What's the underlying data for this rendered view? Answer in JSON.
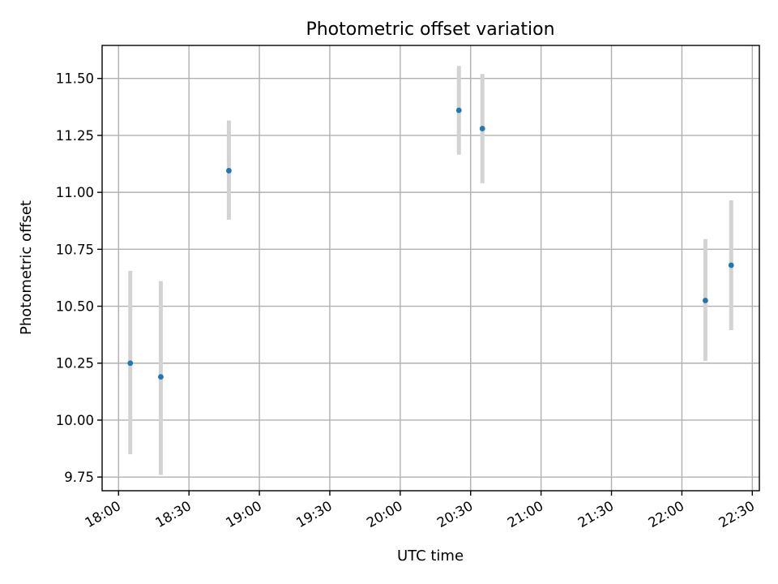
{
  "chart_data": {
    "type": "scatter",
    "title": "Photometric offset variation",
    "xlabel": "UTC time",
    "ylabel": "Photometric offset",
    "x_axis_type": "time",
    "xlim": [
      "17:53",
      "22:33"
    ],
    "ylim": [
      9.69,
      11.645
    ],
    "x_ticks": [
      "18:00",
      "18:30",
      "19:00",
      "19:30",
      "20:00",
      "20:30",
      "21:00",
      "21:30",
      "22:00",
      "22:30"
    ],
    "y_ticks": [
      9.75,
      10.0,
      10.25,
      10.5,
      10.75,
      11.0,
      11.25,
      11.5
    ],
    "y_tick_labels": [
      "9.75",
      "10.00",
      "10.25",
      "10.50",
      "10.75",
      "11.00",
      "11.25",
      "11.50"
    ],
    "grid": true,
    "marker_color": "#1f77b4",
    "errorbar_color": "#d3d3d3",
    "points": [
      {
        "x": "18:05",
        "y": 10.25,
        "yerr_low": 9.85,
        "yerr_high": 10.655
      },
      {
        "x": "18:18",
        "y": 10.19,
        "yerr_low": 9.76,
        "yerr_high": 10.61
      },
      {
        "x": "18:47",
        "y": 11.095,
        "yerr_low": 10.88,
        "yerr_high": 11.315
      },
      {
        "x": "20:25",
        "y": 11.36,
        "yerr_low": 11.165,
        "yerr_high": 11.555
      },
      {
        "x": "20:35",
        "y": 11.28,
        "yerr_low": 11.04,
        "yerr_high": 11.52
      },
      {
        "x": "22:10",
        "y": 10.525,
        "yerr_low": 10.26,
        "yerr_high": 10.795
      },
      {
        "x": "22:21",
        "y": 10.68,
        "yerr_low": 10.395,
        "yerr_high": 10.965
      }
    ]
  }
}
